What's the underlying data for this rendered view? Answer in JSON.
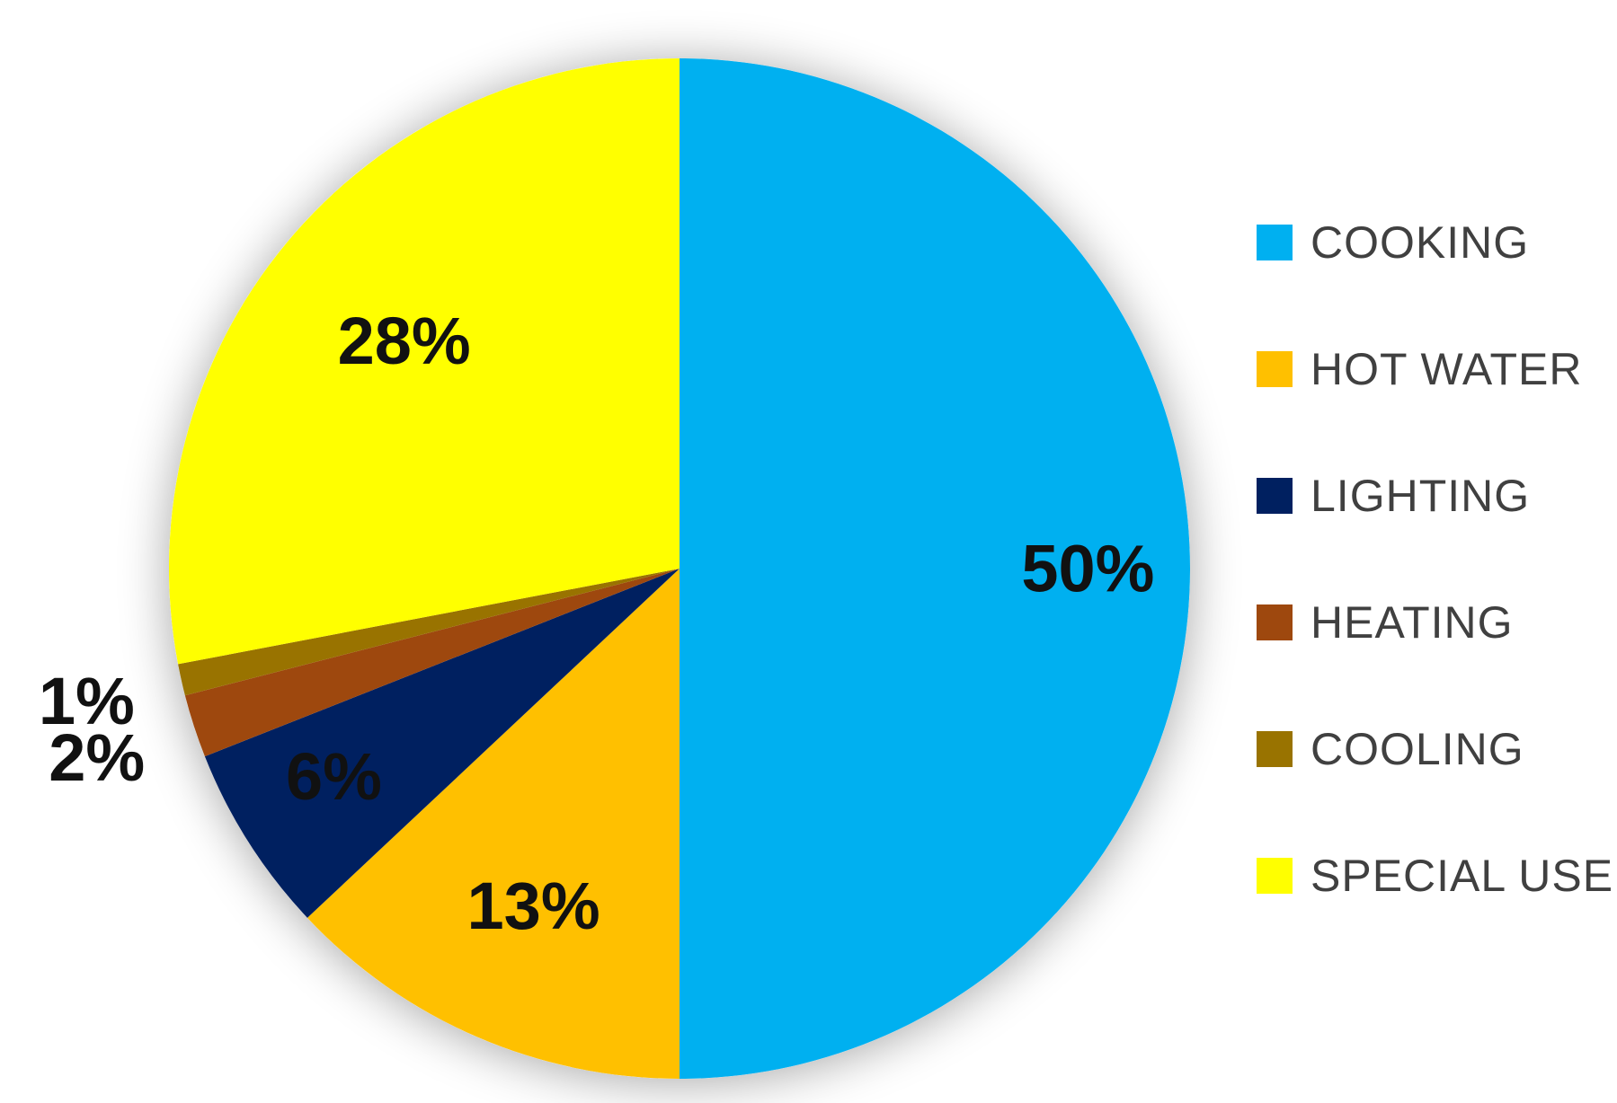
{
  "chart_data": {
    "type": "pie",
    "start_angle_deg": 0,
    "direction": "clockwise",
    "legend_position": "right",
    "slices": [
      {
        "label": "COOKING",
        "value": 50,
        "display": "50%",
        "color": "#00B0F0"
      },
      {
        "label": "HOT WATER",
        "value": 13,
        "display": "13%",
        "color": "#FFC000"
      },
      {
        "label": "LIGHTING",
        "value": 6,
        "display": "6%",
        "color": "#002060"
      },
      {
        "label": "HEATING",
        "value": 2,
        "display": "2%",
        "color": "#9E480E"
      },
      {
        "label": "COOLING",
        "value": 1,
        "display": "1%",
        "color": "#997300"
      },
      {
        "label": "SPECIAL USE",
        "value": 28,
        "display": "28%",
        "color": "#FFFF00"
      }
    ]
  }
}
